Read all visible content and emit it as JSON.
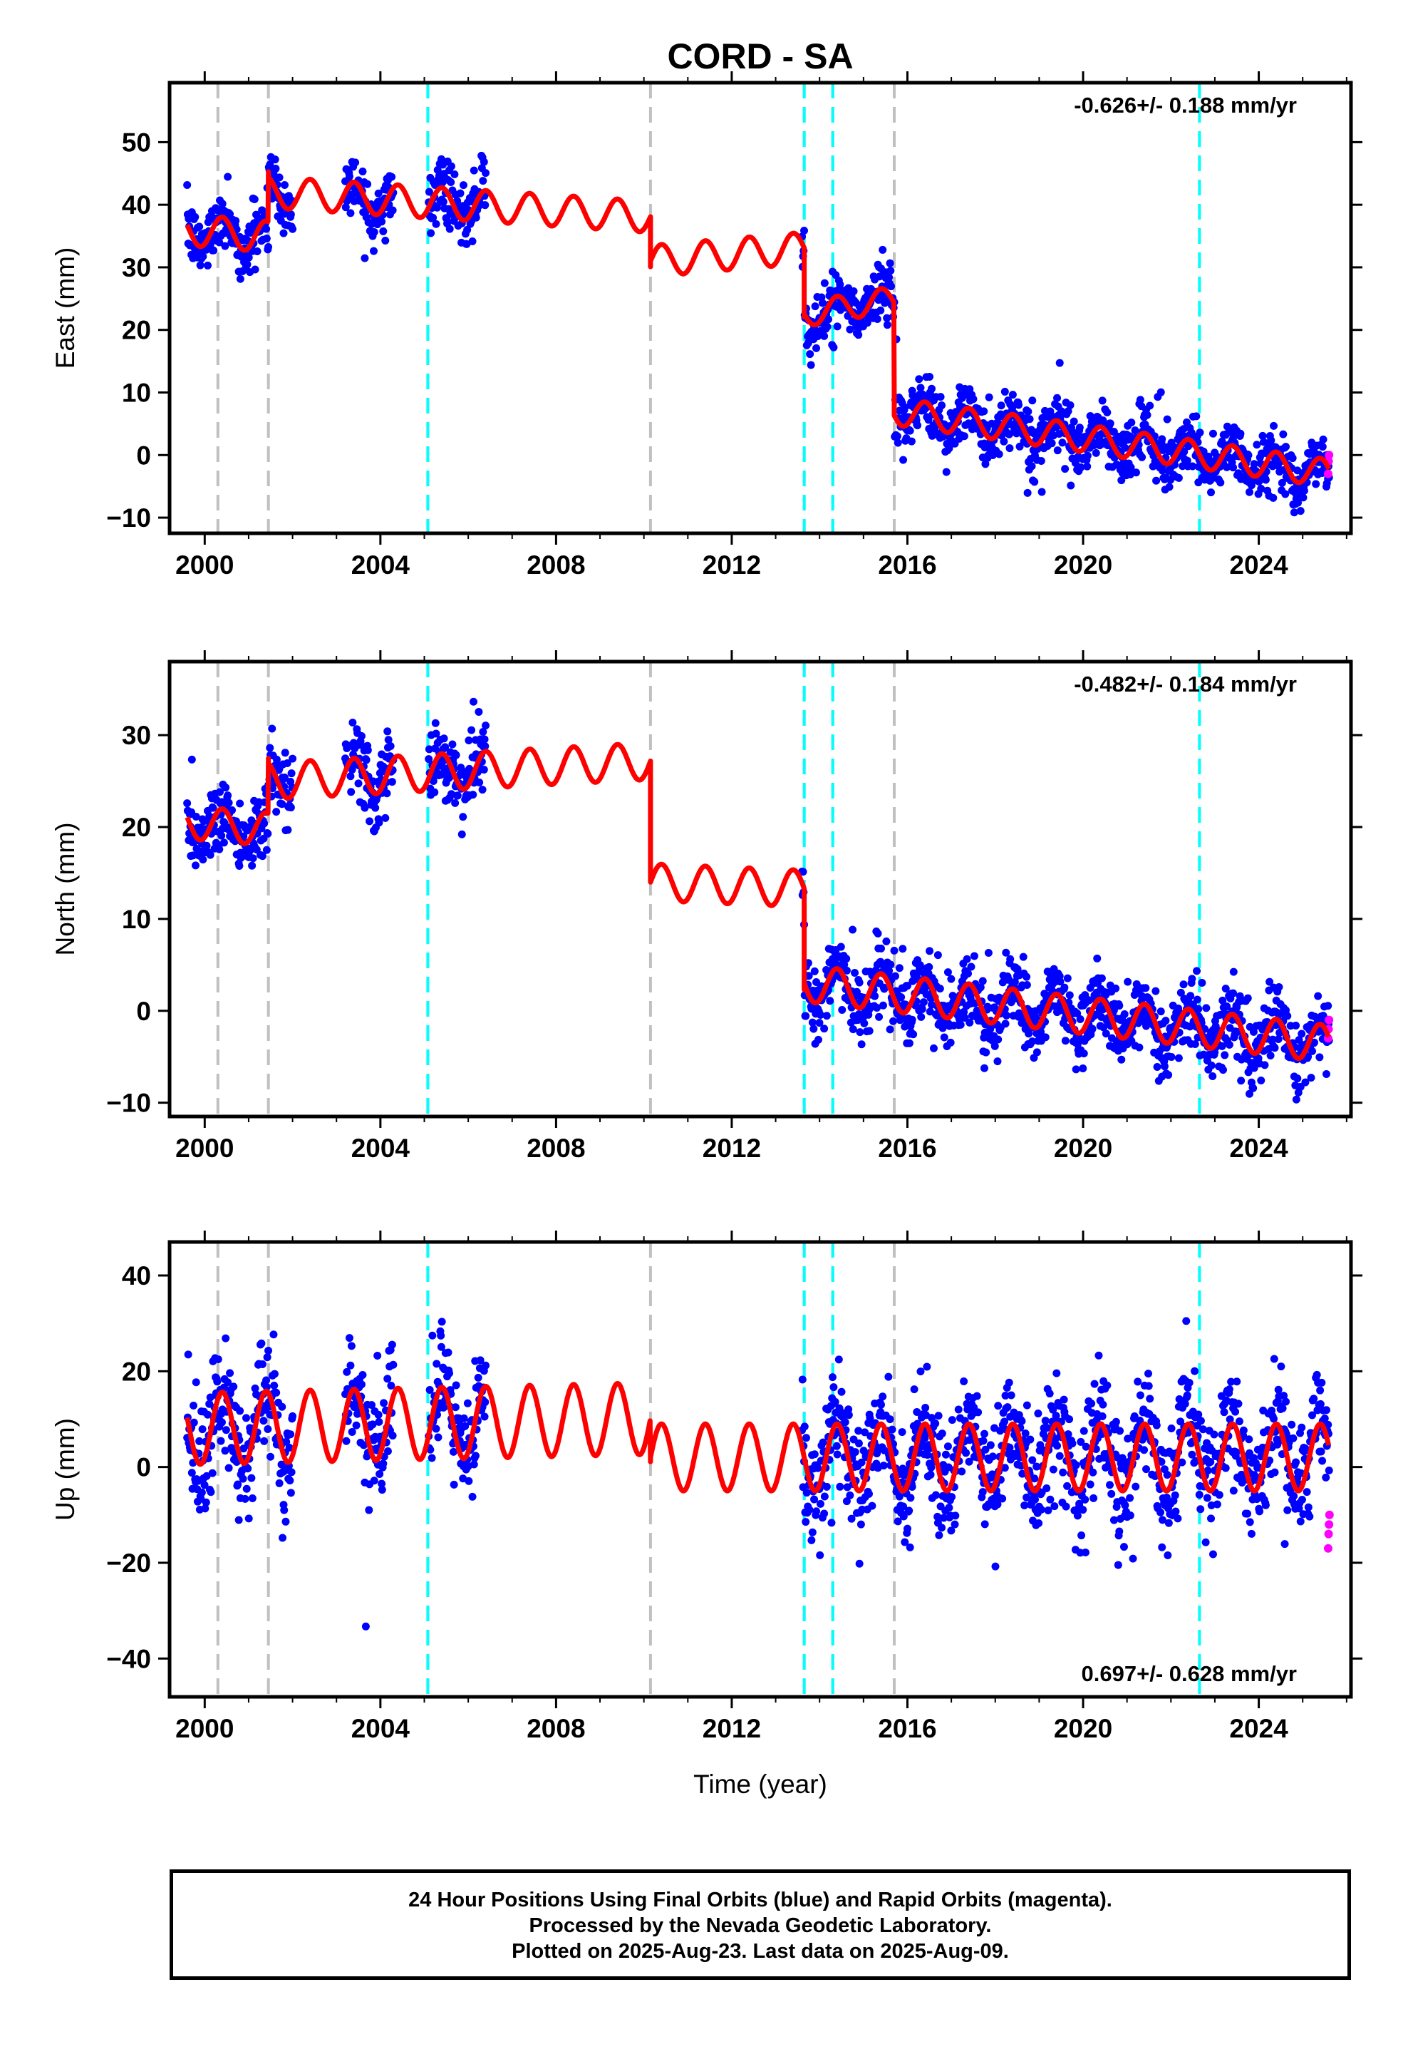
{
  "title": "CORD - SA",
  "xlabel": "Time (year)",
  "footer": {
    "line1": "24 Hour Positions Using Final Orbits (blue) and Rapid Orbits (magenta).",
    "line2": "Processed by the Nevada Geodetic Laboratory.",
    "line3": "Plotted on 2025-Aug-23. Last data on 2025-Aug-09."
  },
  "colors": {
    "final": "#0000ff",
    "rapid": "#ff00ff",
    "model": "#ff0000",
    "equipment": "#c0c0c0",
    "earthquake": "#00ffff"
  },
  "chart_data": {
    "type": "scatter",
    "x_range": [
      1999.2,
      2026.1
    ],
    "x_ticks": [
      2000,
      2004,
      2008,
      2012,
      2016,
      2020,
      2024
    ],
    "x_tick_labels": [
      "2000",
      "2004",
      "2008",
      "2012",
      "2016",
      "2020",
      "2024"
    ],
    "steps_gray": [
      2000.3,
      2001.45,
      2005.08,
      2010.15,
      2013.65,
      2014.3,
      2015.7
    ],
    "steps_cyan": [
      2005.08,
      2013.65,
      2014.3,
      2022.65
    ],
    "data_ranges": [
      [
        1999.6,
        2002.0
      ],
      [
        2003.2,
        2004.3
      ],
      [
        2005.1,
        2006.4
      ],
      [
        2013.6,
        2025.6
      ]
    ],
    "panels": [
      {
        "key": "east",
        "ylabel": "East (mm)",
        "y_range": [
          -12.5,
          59.5
        ],
        "y_ticks": [
          -10,
          0,
          10,
          20,
          30,
          40,
          50
        ],
        "y_tick_labels": [
          "−10",
          "0",
          "10",
          "20",
          "30",
          "40",
          "50"
        ],
        "rate_text": "-0.626+/- 0.188 mm/yr",
        "rate_position": "top-right",
        "model_segments": [
          {
            "from": 1999.6,
            "to": 2001.45,
            "start": 36,
            "slope": -0.6,
            "amp": 2.5,
            "jump_after": 8
          },
          {
            "from": 2001.45,
            "to": 2010.15,
            "start": 42,
            "slope": -0.45,
            "amp": 2.5,
            "jump_after": -8
          },
          {
            "from": 2010.15,
            "to": 2013.65,
            "start": 31,
            "slope": 0.6,
            "amp": 2.5,
            "jump_after": -11
          },
          {
            "from": 2013.65,
            "to": 2015.7,
            "start": 22.5,
            "slope": 1.2,
            "amp": 2.0,
            "jump_after": -16
          },
          {
            "from": 2015.7,
            "to": 2025.6,
            "start": 7,
            "slope": -1.0,
            "amp": 2.2,
            "jump_after": 0
          }
        ],
        "scatter_sd": 2.3,
        "rapid_values": [
          -3,
          -1,
          0
        ]
      },
      {
        "key": "north",
        "ylabel": "North (mm)",
        "y_range": [
          -11.5,
          38
        ],
        "y_ticks": [
          -10,
          0,
          10,
          20,
          30
        ],
        "y_tick_labels": [
          "−10",
          "0",
          "10",
          "20",
          "30"
        ],
        "rate_text": "-0.482+/- 0.184 mm/yr",
        "rate_position": "top-right",
        "model_segments": [
          {
            "from": 1999.6,
            "to": 2001.45,
            "start": 20.5,
            "slope": -0.4,
            "amp": 1.8,
            "jump_after": 6
          },
          {
            "from": 2001.45,
            "to": 2010.15,
            "start": 25,
            "slope": 0.25,
            "amp": 2.0,
            "jump_after": -12
          },
          {
            "from": 2010.15,
            "to": 2013.65,
            "start": 14,
            "slope": -0.2,
            "amp": 2.0,
            "jump_after": -11
          },
          {
            "from": 2013.65,
            "to": 2025.6,
            "start": 3,
            "slope": -0.55,
            "amp": 2.0,
            "jump_after": 0
          }
        ],
        "scatter_sd": 2.0,
        "rapid_values": [
          -3,
          -2,
          -1
        ]
      },
      {
        "key": "up",
        "ylabel": "Up (mm)",
        "y_range": [
          -48,
          47
        ],
        "y_ticks": [
          -40,
          -20,
          0,
          20,
          40
        ],
        "y_tick_labels": [
          "−40",
          "−20",
          "0",
          "20",
          "40"
        ],
        "rate_text": "0.697+/- 0.628 mm/yr",
        "rate_position": "bottom-right",
        "model_segments": [
          {
            "from": 1999.6,
            "to": 2010.15,
            "start": 8,
            "slope": 0.2,
            "amp": 7.5,
            "jump_after": -9
          },
          {
            "from": 2010.15,
            "to": 2025.6,
            "start": 2,
            "slope": 0.0,
            "amp": 7.0,
            "jump_after": 0
          }
        ],
        "scatter_sd": 6.0,
        "rapid_values": [
          -17,
          -14,
          -12,
          -10
        ]
      }
    ]
  }
}
